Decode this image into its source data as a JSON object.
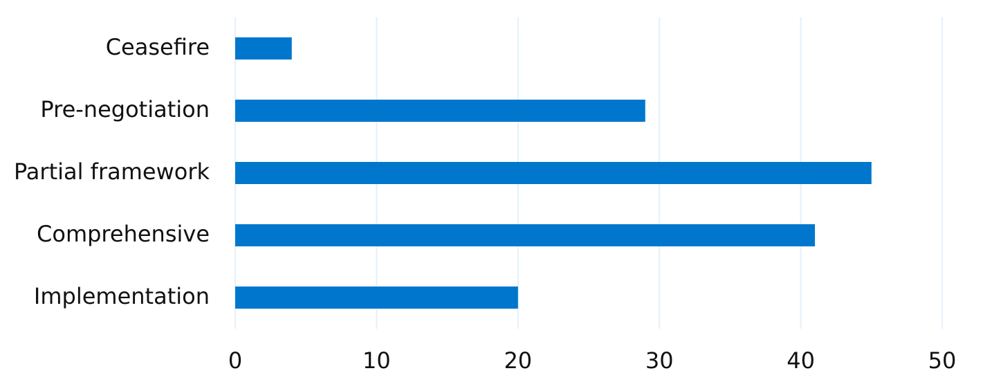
{
  "chart_data": {
    "type": "bar",
    "orientation": "horizontal",
    "categories": [
      "Ceasefire",
      "Pre-negotiation",
      "Partial framework",
      "Comprehensive",
      "Implementation"
    ],
    "values": [
      4,
      29,
      45,
      41,
      20
    ],
    "color": "#0077cc",
    "xlim": [
      0,
      50
    ],
    "xticks": [
      0,
      10,
      20,
      30,
      40,
      50
    ],
    "grid": true
  }
}
